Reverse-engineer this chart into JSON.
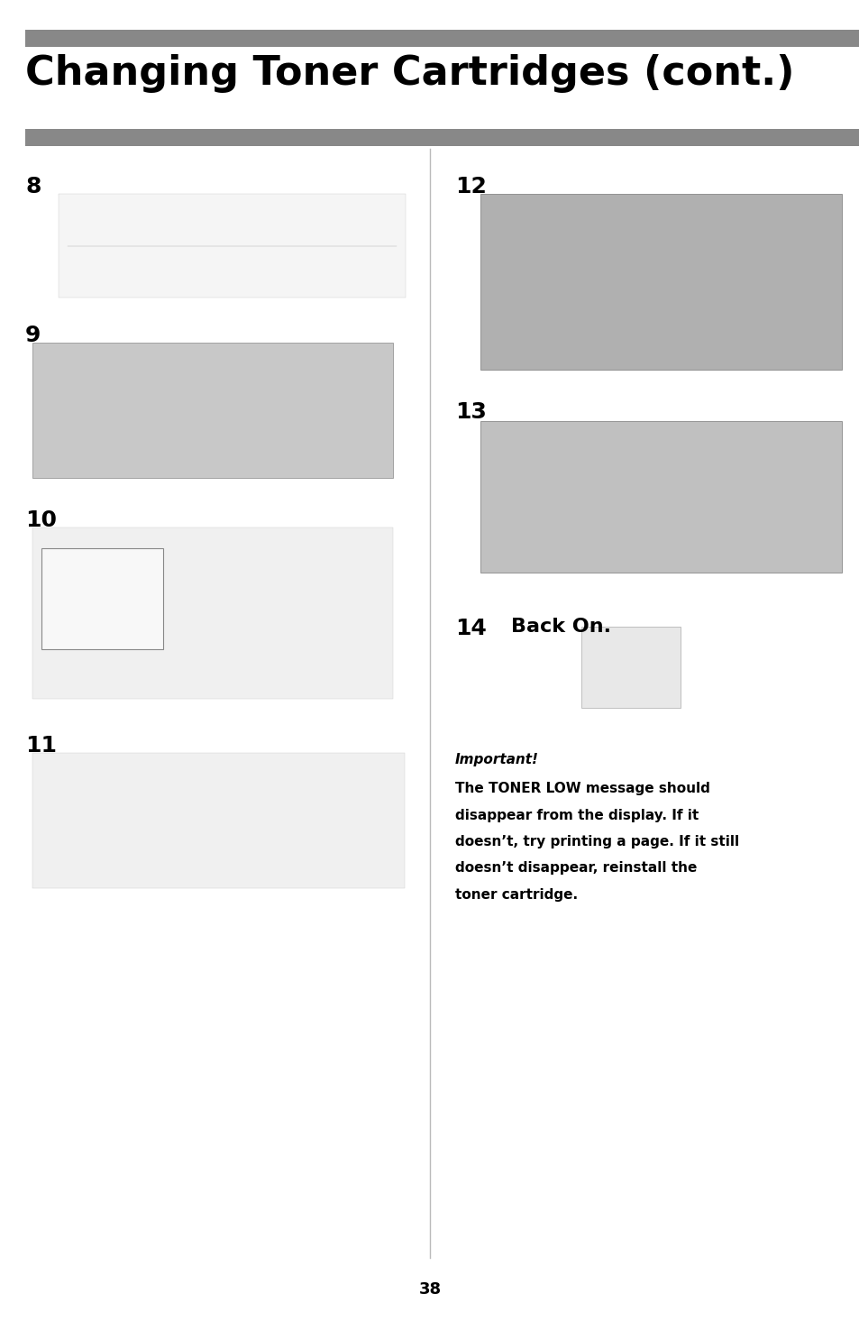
{
  "title": "Changing Toner Cartridges (cont.)",
  "title_fontsize": 32,
  "title_fontweight": "bold",
  "page_number": "38",
  "background_color": "#ffffff",
  "header_bar_color": "#888888",
  "step_num_fontsize": 18,
  "step_num_fontweight": "bold",
  "important_title": "Important!",
  "important_text_bold": "The ",
  "important_text_mono": "TONER LOW",
  "important_text_rest": " message should\ndisappear from the display. If it\ndoesn’t, try printing a page. If it still\ndoesn’t disappear, reinstall the\ntoner cartridge.",
  "divider_color": "#bbbbbb",
  "img8_color": "#f5f5f5",
  "img9_color": "#c8c8c8",
  "img10_color": "#f0f0f0",
  "img11_color": "#f0f0f0",
  "img12_color": "#b0b0b0",
  "img13_color": "#c0c0c0",
  "img14_color": "#e8e8e8"
}
